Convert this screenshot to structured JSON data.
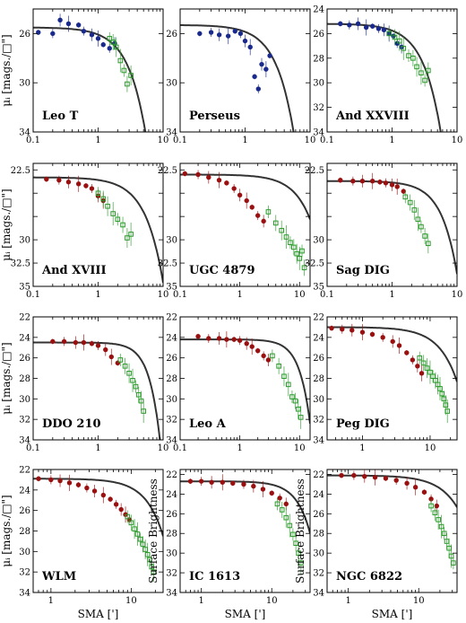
{
  "figure": {
    "xlabel": "SMA [']",
    "ylabel_mag": "μᵢ [mags./□\"]",
    "ylabel_sb": "Surface Brightness"
  },
  "colors": {
    "inner": "#1a2a8c",
    "outer": "#2a9a2a",
    "red": "#9a1010",
    "curve": "#333333"
  },
  "chart_data": [
    {
      "type": "scatter",
      "title": "Leo T",
      "xscale": "log",
      "xlim": [
        0.1,
        10
      ],
      "ylim": [
        34,
        24
      ],
      "xticks": [
        0.1,
        1,
        10
      ],
      "yticks": [
        26,
        30,
        34
      ],
      "yticklabels": [
        "26",
        "30",
        "34"
      ],
      "ylabel": "μᵢ [mags./□\"]",
      "xlabel": "",
      "series": [
        {
          "name": "",
          "color": "blue",
          "x": [
            0.12,
            0.2,
            0.26,
            0.35,
            0.5,
            0.6,
            0.8,
            1.0,
            1.2,
            1.5,
            1.8
          ],
          "y": [
            25.9,
            26.0,
            24.9,
            25.2,
            25.3,
            25.8,
            26.1,
            26.4,
            26.9,
            27.2,
            26.8
          ]
        },
        {
          "name": "",
          "color": "green",
          "x": [
            1.5,
            1.7,
            1.9,
            2.2,
            2.5,
            2.8,
            3.2
          ],
          "y": [
            26.4,
            26.7,
            27.1,
            28.2,
            29.0,
            30.1,
            29.4
          ]
        }
      ],
      "model": {
        "mu0": 25.5,
        "x0": 3.5,
        "n": 1.6
      }
    },
    {
      "type": "scatter",
      "title": "Perseus",
      "xscale": "log",
      "xlim": [
        0.1,
        10
      ],
      "ylim": [
        34,
        24
      ],
      "xticks": [
        0.1,
        1,
        10
      ],
      "yticks": [
        26,
        30,
        34
      ],
      "yticklabels": [
        "26",
        "30",
        "34"
      ],
      "ylabel": "",
      "xlabel": "",
      "series": [
        {
          "name": "",
          "color": "blue",
          "x": [
            0.2,
            0.3,
            0.4,
            0.55,
            0.7,
            0.85,
            1.0,
            1.2,
            1.4,
            1.6,
            1.8,
            2.1,
            2.4
          ],
          "y": [
            26.0,
            25.9,
            26.1,
            26.2,
            25.8,
            26.0,
            26.6,
            27.1,
            29.5,
            30.5,
            28.5,
            28.9,
            27.8
          ]
        }
      ],
      "model": {
        "mu0": 25.3,
        "x0": 3.6,
        "n": 1.6
      }
    },
    {
      "type": "scatter",
      "title": "And XXVIII",
      "xscale": "log",
      "xlim": [
        0.1,
        10
      ],
      "ylim": [
        34,
        24
      ],
      "xticks": [
        0.1,
        1,
        10
      ],
      "yticks": [
        24,
        26,
        28,
        30,
        32,
        34
      ],
      "yticklabels": [
        "24",
        "26",
        "28",
        "30",
        "32",
        "34"
      ],
      "ylabel": "",
      "xlabel": "",
      "series": [
        {
          "name": "",
          "color": "blue",
          "x": [
            0.16,
            0.22,
            0.3,
            0.4,
            0.5,
            0.62,
            0.75,
            0.9,
            1.05,
            1.2,
            1.4
          ],
          "y": [
            25.2,
            25.3,
            25.2,
            25.5,
            25.4,
            25.6,
            25.7,
            26.0,
            26.2,
            26.8,
            27.1
          ]
        },
        {
          "name": "",
          "color": "green",
          "x": [
            0.9,
            1.1,
            1.3,
            1.5,
            1.8,
            2.1,
            2.4,
            2.8,
            3.2,
            3.6
          ],
          "y": [
            26.0,
            26.3,
            26.6,
            27.2,
            27.8,
            28.0,
            28.7,
            29.2,
            29.8,
            29.0
          ]
        }
      ],
      "model": {
        "mu0": 25.2,
        "x0": 3.6,
        "n": 1.6
      }
    },
    {
      "type": "scatter",
      "title": "And XVIII",
      "xscale": "log",
      "xlim": [
        0.1,
        10
      ],
      "ylim": [
        35,
        21.8
      ],
      "xticks": [
        0.1,
        1,
        10
      ],
      "yticks": [
        22.5,
        25,
        27.5,
        30,
        32.5,
        35
      ],
      "yticklabels": [
        "22.5",
        "",
        "",
        "30",
        "32.5",
        "35"
      ],
      "ylabel": "μᵢ [mags./□\"]",
      "xlabel": "",
      "series": [
        {
          "name": "",
          "color": "red",
          "x": [
            0.16,
            0.25,
            0.35,
            0.5,
            0.65,
            0.8,
            1.0,
            1.2
          ],
          "y": [
            23.5,
            23.6,
            23.8,
            24.0,
            24.2,
            24.5,
            25.3,
            25.8
          ]
        },
        {
          "name": "",
          "color": "green",
          "x": [
            1.0,
            1.2,
            1.4,
            1.7,
            2.0,
            2.4,
            2.8,
            3.2
          ],
          "y": [
            25.0,
            25.6,
            26.4,
            27.2,
            27.8,
            28.4,
            29.8,
            29.4
          ]
        }
      ],
      "model": {
        "mu0": 23.3,
        "x0": 5.5,
        "n": 1.6
      }
    },
    {
      "type": "scatter",
      "title": "UGC 4879",
      "xscale": "log",
      "xlim": [
        0.1,
        15
      ],
      "ylim": [
        35,
        21.8
      ],
      "xticks": [
        0.1,
        1,
        10
      ],
      "yticks": [
        22.5,
        25,
        27.5,
        30,
        32.5,
        35
      ],
      "yticklabels": [
        "22.5",
        "",
        "",
        "30",
        "32.5",
        "35"
      ],
      "ylabel": "",
      "xlabel": "",
      "series": [
        {
          "name": "",
          "color": "red",
          "x": [
            0.12,
            0.2,
            0.3,
            0.45,
            0.6,
            0.8,
            1.0,
            1.3,
            1.6,
            2.0,
            2.5
          ],
          "y": [
            22.9,
            23.0,
            23.3,
            23.6,
            23.9,
            24.5,
            25.2,
            25.8,
            26.5,
            27.4,
            28.0
          ]
        },
        {
          "name": "",
          "color": "green",
          "x": [
            3.0,
            4.0,
            5.0,
            6.0,
            7.0,
            8.0,
            9.0,
            10.0,
            11.0,
            12.0
          ],
          "y": [
            27.0,
            28.2,
            29.0,
            29.7,
            30.3,
            30.8,
            31.5,
            32.0,
            31.2,
            33.0
          ]
        }
      ],
      "model": {
        "mu0": 23.0,
        "x0": 14,
        "n": 1.5
      }
    },
    {
      "type": "scatter",
      "title": "Sag DIG",
      "xscale": "log",
      "xlim": [
        0.1,
        10
      ],
      "ylim": [
        35,
        21.8
      ],
      "xticks": [
        0.1,
        1,
        10
      ],
      "yticks": [
        22.5,
        25,
        27.5,
        30,
        32.5,
        35
      ],
      "yticklabels": [
        "22.5",
        "",
        "",
        "30",
        "32.5",
        "35"
      ],
      "ylabel": "",
      "xlabel": "",
      "series": [
        {
          "name": "",
          "color": "red",
          "x": [
            0.16,
            0.25,
            0.35,
            0.5,
            0.65,
            0.8,
            1.0,
            1.2,
            1.5
          ],
          "y": [
            23.6,
            23.7,
            23.7,
            23.7,
            23.8,
            23.9,
            24.1,
            24.3,
            24.8
          ]
        },
        {
          "name": "",
          "color": "green",
          "x": [
            1.6,
            1.9,
            2.2,
            2.5,
            2.8,
            3.2,
            3.6
          ],
          "y": [
            25.4,
            26.0,
            26.8,
            27.8,
            28.6,
            29.6,
            30.4
          ]
        }
      ],
      "model": {
        "mu0": 23.7,
        "x0": 6.3,
        "n": 1.8
      }
    },
    {
      "type": "scatter",
      "title": "DDO 210",
      "xscale": "log",
      "xlim": [
        0.1,
        10
      ],
      "ylim": [
        34,
        22
      ],
      "xticks": [
        0.1,
        1,
        10
      ],
      "yticks": [
        22,
        24,
        26,
        28,
        30,
        32,
        34
      ],
      "yticklabels": [
        "22",
        "24",
        "26",
        "28",
        "30",
        "32",
        "34"
      ],
      "ylabel": "μᵢ [mags./□\"]",
      "xlabel": "",
      "series": [
        {
          "name": "",
          "color": "red",
          "x": [
            0.2,
            0.3,
            0.45,
            0.6,
            0.8,
            1.0,
            1.3,
            1.6,
            2.0
          ],
          "y": [
            24.4,
            24.4,
            24.5,
            24.5,
            24.6,
            24.8,
            25.2,
            25.9,
            26.5
          ]
        },
        {
          "name": "",
          "color": "green",
          "x": [
            2.2,
            2.6,
            3.0,
            3.4,
            3.8,
            4.2,
            4.6,
            5.0
          ],
          "y": [
            26.2,
            26.8,
            27.5,
            28.2,
            28.8,
            29.6,
            30.2,
            31.2
          ]
        }
      ],
      "model": {
        "mu0": 24.5,
        "x0": 6.6,
        "n": 2.6
      }
    },
    {
      "type": "scatter",
      "title": "Leo A",
      "xscale": "log",
      "xlim": [
        0.1,
        15
      ],
      "ylim": [
        34,
        22
      ],
      "xticks": [
        0.1,
        1,
        10
      ],
      "yticks": [
        22,
        24,
        26,
        28,
        30,
        32,
        34
      ],
      "yticklabels": [
        "22",
        "24",
        "26",
        "28",
        "30",
        "32",
        "34"
      ],
      "ylabel": "",
      "xlabel": "",
      "series": [
        {
          "name": "",
          "color": "red",
          "x": [
            0.2,
            0.3,
            0.45,
            0.6,
            0.8,
            1.0,
            1.3,
            1.6,
            2.0,
            2.5,
            3.0
          ],
          "y": [
            23.9,
            24.1,
            24.1,
            24.2,
            24.2,
            24.3,
            24.6,
            24.9,
            25.3,
            25.8,
            26.2
          ]
        },
        {
          "name": "",
          "color": "green",
          "x": [
            3.5,
            4.5,
            5.5,
            6.5,
            7.5,
            8.5,
            9.5,
            10.5
          ],
          "y": [
            25.8,
            26.8,
            27.8,
            28.6,
            29.8,
            30.2,
            31.0,
            31.8
          ]
        }
      ],
      "model": {
        "mu0": 24.2,
        "x0": 11.5,
        "n": 2.4
      }
    },
    {
      "type": "scatter",
      "title": "Peg DIG",
      "xscale": "log",
      "xlim": [
        0.3,
        25
      ],
      "ylim": [
        34,
        22
      ],
      "xticks": [
        1,
        10
      ],
      "yticks": [
        22,
        24,
        26,
        28,
        30,
        32,
        34
      ],
      "yticklabels": [
        "22",
        "24",
        "26",
        "28",
        "30",
        "32",
        "34"
      ],
      "ylabel": "",
      "xlabel": "",
      "series": [
        {
          "name": "",
          "color": "red",
          "x": [
            0.35,
            0.5,
            0.7,
            1.0,
            1.4,
            2.0,
            2.8,
            3.5,
            4.5,
            5.5,
            6.5,
            7.5
          ],
          "y": [
            23.1,
            23.2,
            23.3,
            23.5,
            23.7,
            24.0,
            24.4,
            24.8,
            25.5,
            26.2,
            26.8,
            27.5
          ]
        },
        {
          "name": "",
          "color": "green",
          "x": [
            7,
            8,
            9,
            10,
            11,
            12,
            13,
            14,
            15,
            16,
            17,
            18
          ],
          "y": [
            26.0,
            26.5,
            27.0,
            27.4,
            27.8,
            28.2,
            28.6,
            29.0,
            29.5,
            30.0,
            30.6,
            31.2
          ]
        }
      ],
      "model": {
        "mu0": 23.0,
        "x0": 22,
        "n": 1.6
      }
    },
    {
      "type": "scatter",
      "title": "WLM",
      "xscale": "log",
      "xlim": [
        0.6,
        25
      ],
      "ylim": [
        34,
        22
      ],
      "xticks": [
        1,
        10
      ],
      "yticks": [
        22,
        24,
        26,
        28,
        30,
        32,
        34
      ],
      "yticklabels": [
        "22",
        "24",
        "26",
        "28",
        "30",
        "32",
        "34"
      ],
      "ylabel": "μᵢ [mags./□\"]",
      "xlabel": "SMA [']",
      "series": [
        {
          "name": "",
          "color": "red",
          "x": [
            0.7,
            1.0,
            1.3,
            1.7,
            2.2,
            2.8,
            3.5,
            4.5,
            5.5,
            6.5,
            7.5,
            8.5,
            9.5
          ],
          "y": [
            22.9,
            23.0,
            23.1,
            23.3,
            23.5,
            23.8,
            24.1,
            24.5,
            24.9,
            25.4,
            25.9,
            26.4,
            26.9
          ]
        },
        {
          "name": "",
          "color": "green",
          "x": [
            9,
            10,
            11,
            12,
            13,
            14,
            15,
            16,
            17,
            18,
            19
          ],
          "y": [
            26.6,
            27.2,
            27.8,
            28.3,
            28.8,
            29.3,
            29.8,
            30.3,
            30.8,
            31.5,
            32.0
          ]
        }
      ],
      "model": {
        "mu0": 22.9,
        "x0": 22,
        "n": 2.0
      }
    },
    {
      "type": "scatter",
      "title": "IC 1613",
      "xscale": "log",
      "xlim": [
        0.5,
        35
      ],
      "ylim": [
        34,
        21.5
      ],
      "xticks": [
        1,
        10
      ],
      "yticks": [
        22,
        24,
        26,
        28,
        30,
        32,
        34
      ],
      "yticklabels": [
        "22",
        "24",
        "26",
        "28",
        "30",
        "32",
        "34"
      ],
      "ylabel": "Surface Brightness",
      "xlabel": "SMA [']",
      "series": [
        {
          "name": "",
          "color": "red",
          "x": [
            0.7,
            1.0,
            1.4,
            2.0,
            2.8,
            4.0,
            5.5,
            7.5,
            10,
            13,
            16
          ],
          "y": [
            22.7,
            22.7,
            22.8,
            22.8,
            22.9,
            23.0,
            23.2,
            23.5,
            23.9,
            24.4,
            25.0
          ]
        },
        {
          "name": "",
          "color": "green",
          "x": [
            12,
            14,
            16,
            18,
            20,
            22,
            24,
            26
          ],
          "y": [
            25.0,
            25.6,
            26.4,
            27.2,
            28.1,
            29.0,
            30.0,
            31.0
          ]
        }
      ],
      "model": {
        "mu0": 22.7,
        "x0": 32,
        "n": 2.2
      }
    },
    {
      "type": "scatter",
      "title": "NGC 6822",
      "xscale": "log",
      "xlim": [
        0.5,
        35
      ],
      "ylim": [
        34,
        21.5
      ],
      "xticks": [
        1,
        10
      ],
      "yticks": [
        22,
        24,
        26,
        28,
        30,
        32,
        34
      ],
      "yticklabels": [
        "22",
        "24",
        "26",
        "28",
        "30",
        "32",
        "34"
      ],
      "ylabel": "Surface Brightness",
      "xlabel": "SMA [']",
      "series": [
        {
          "name": "",
          "color": "red",
          "x": [
            0.8,
            1.2,
            1.7,
            2.4,
            3.4,
            4.8,
            6.8,
            9,
            12,
            15,
            18
          ],
          "y": [
            22.1,
            22.1,
            22.2,
            22.3,
            22.4,
            22.6,
            22.9,
            23.3,
            23.8,
            24.5,
            25.2
          ]
        },
        {
          "name": "",
          "color": "green",
          "x": [
            15,
            17,
            19,
            21,
            23,
            25,
            27,
            29,
            31
          ],
          "y": [
            25.2,
            25.9,
            26.6,
            27.3,
            28.0,
            28.8,
            29.5,
            30.3,
            31.0
          ]
        }
      ],
      "model": {
        "mu0": 22.1,
        "x0": 42,
        "n": 1.6
      }
    }
  ]
}
